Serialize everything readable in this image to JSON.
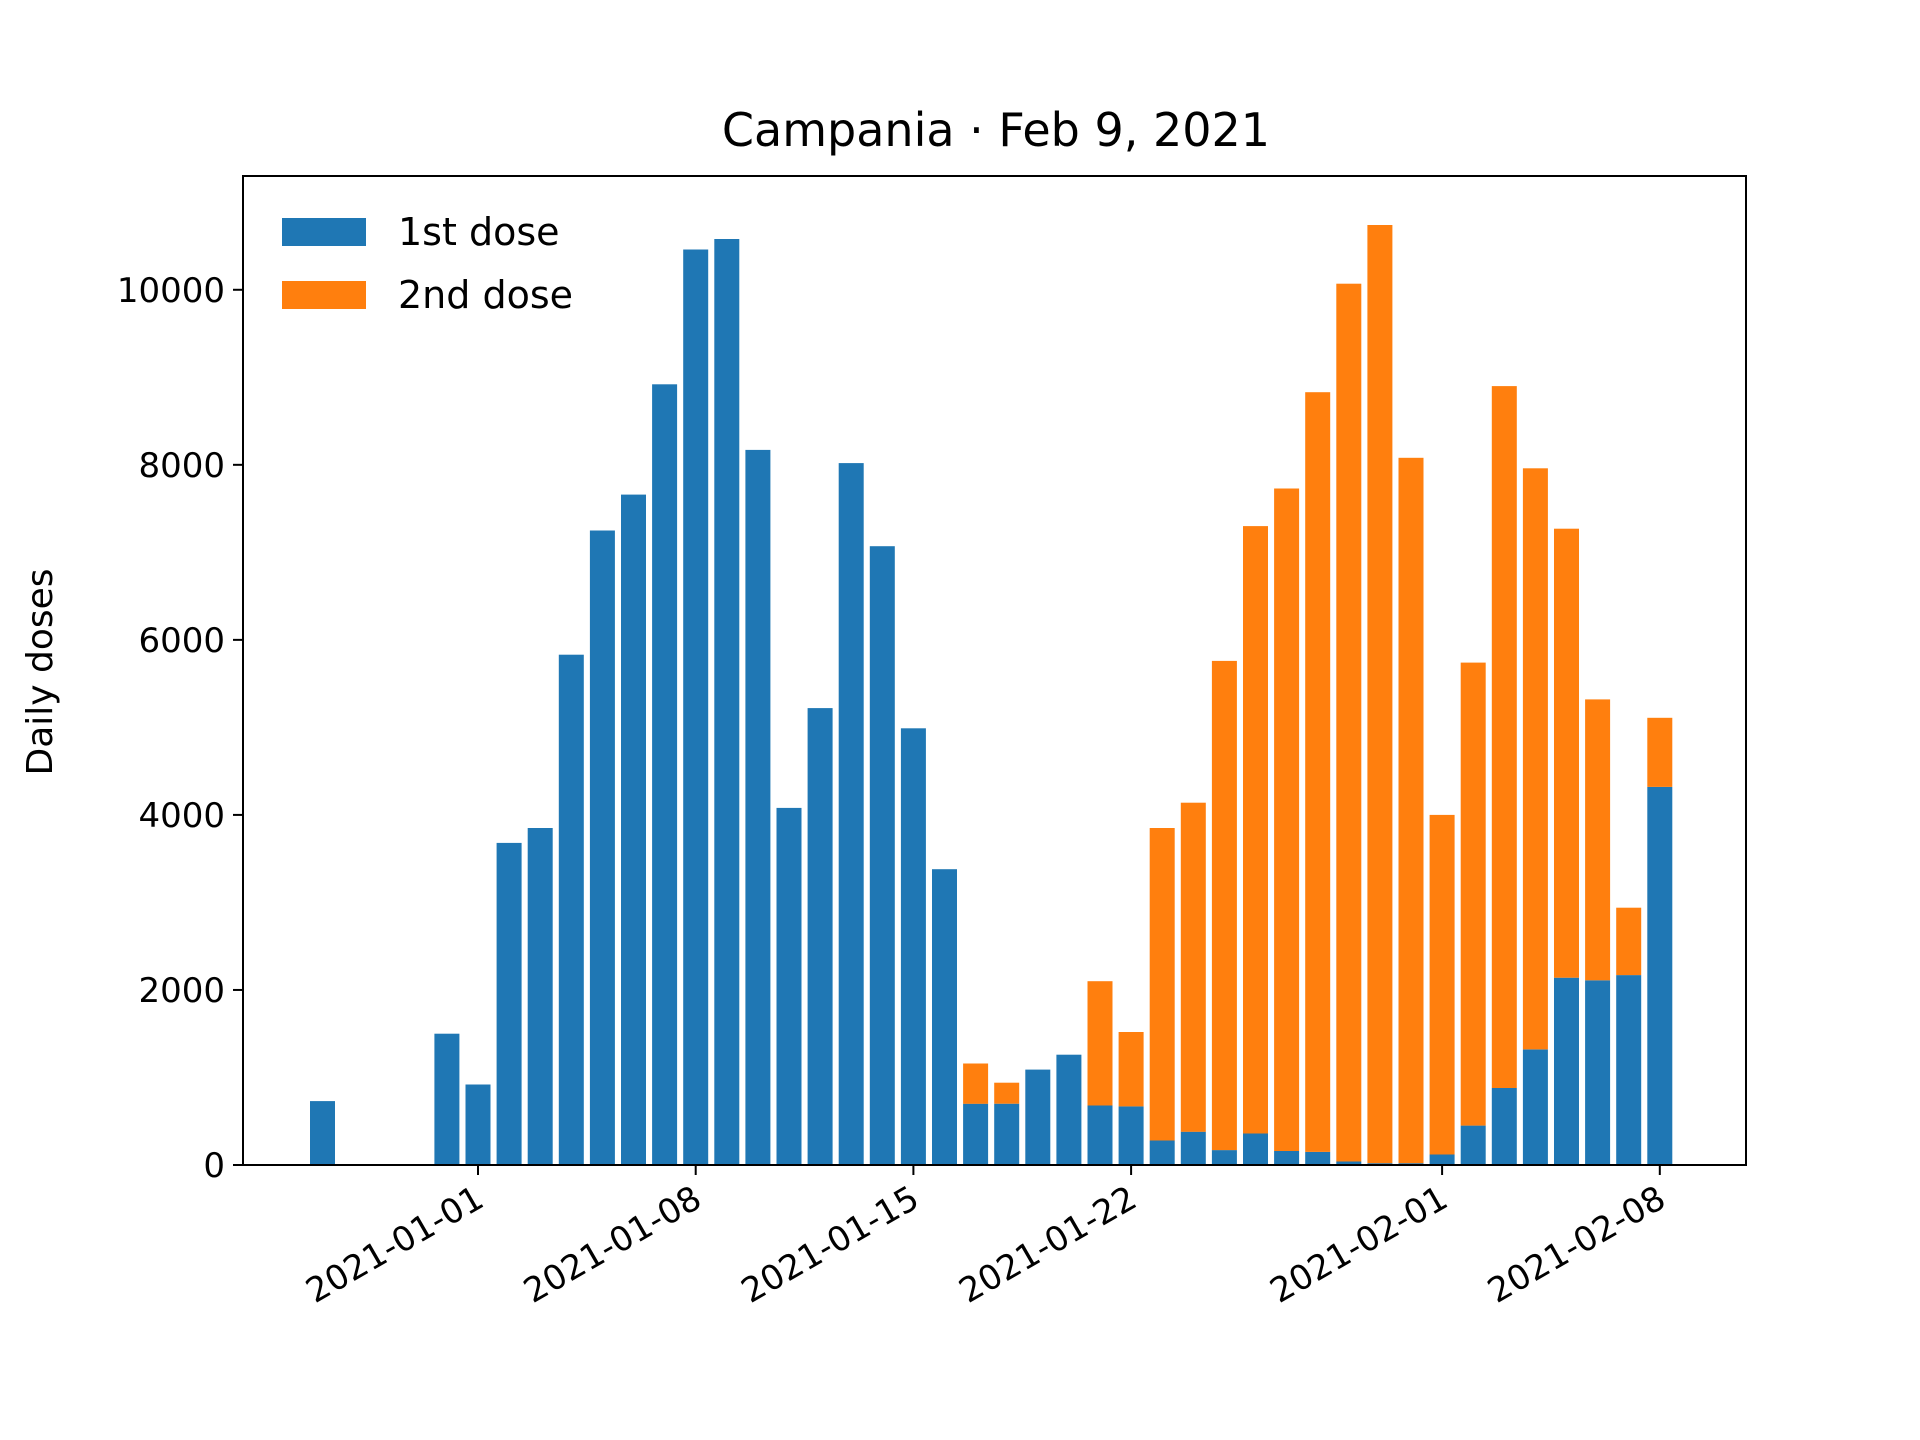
{
  "chart_data": {
    "type": "bar",
    "stacked": true,
    "title": "Campania · Feb 9, 2021",
    "xlabel": "",
    "ylabel": "Daily doses",
    "x_start": "2020-12-27",
    "x": [
      "2020-12-27",
      "2020-12-28",
      "2020-12-29",
      "2020-12-30",
      "2020-12-31",
      "2021-01-01",
      "2021-01-02",
      "2021-01-03",
      "2021-01-04",
      "2021-01-05",
      "2021-01-06",
      "2021-01-07",
      "2021-01-08",
      "2021-01-09",
      "2021-01-10",
      "2021-01-11",
      "2021-01-12",
      "2021-01-13",
      "2021-01-14",
      "2021-01-15",
      "2021-01-16",
      "2021-01-17",
      "2021-01-18",
      "2021-01-19",
      "2021-01-20",
      "2021-01-21",
      "2021-01-22",
      "2021-01-23",
      "2021-01-24",
      "2021-01-25",
      "2021-01-26",
      "2021-01-27",
      "2021-01-28",
      "2021-01-29",
      "2021-01-30",
      "2021-01-31",
      "2021-02-01",
      "2021-02-02",
      "2021-02-03",
      "2021-02-04",
      "2021-02-05",
      "2021-02-06",
      "2021-02-07",
      "2021-02-08"
    ],
    "ylim": [
      0,
      11300
    ],
    "yticks": [
      0,
      2000,
      4000,
      6000,
      8000,
      10000
    ],
    "xticks": [
      "2021-01-01",
      "2021-01-08",
      "2021-01-15",
      "2021-01-22",
      "2021-02-01",
      "2021-02-08"
    ],
    "legend": "upper-left",
    "series": [
      {
        "name": "1st dose",
        "color": "#1f77b4",
        "values": [
          730,
          0,
          0,
          0,
          1500,
          920,
          3680,
          3850,
          5830,
          7250,
          7660,
          8920,
          10460,
          10580,
          8170,
          4080,
          5220,
          8020,
          7070,
          4990,
          3380,
          700,
          700,
          1090,
          1260,
          680,
          670,
          280,
          380,
          170,
          360,
          160,
          150,
          40,
          20,
          20,
          120,
          450,
          880,
          1320,
          2140,
          2110,
          2170,
          4320
        ]
      },
      {
        "name": "2nd dose",
        "color": "#ff7f0e",
        "values": [
          0,
          0,
          0,
          0,
          0,
          0,
          0,
          0,
          0,
          0,
          0,
          0,
          0,
          0,
          0,
          0,
          0,
          0,
          0,
          0,
          0,
          460,
          240,
          0,
          0,
          1420,
          850,
          3570,
          3760,
          5590,
          6940,
          7570,
          8680,
          10030,
          10720,
          8060,
          3880,
          5290,
          8020,
          6640,
          5130,
          3210,
          770,
          790
        ]
      }
    ]
  }
}
